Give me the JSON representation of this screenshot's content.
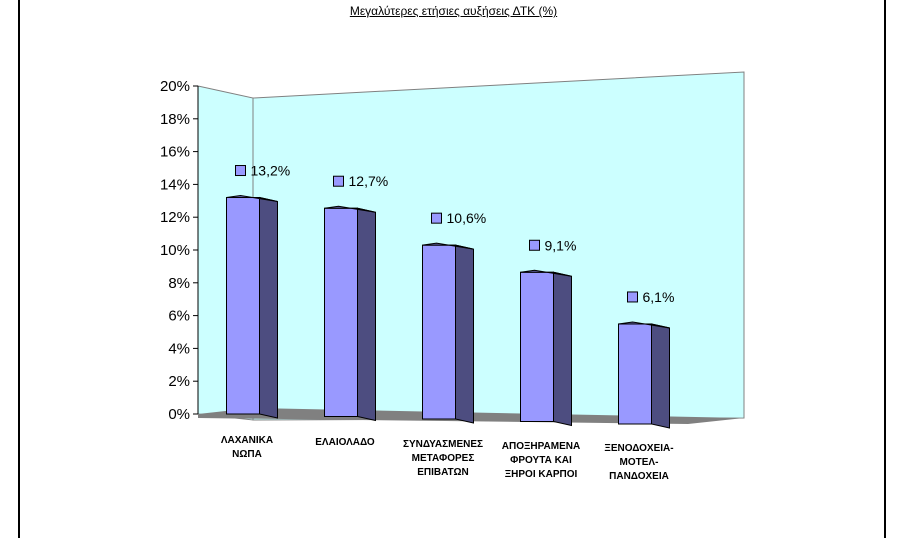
{
  "chart_data": {
    "type": "bar",
    "title": "Μεγαλύτερες ετήσιες αυξήσεις ΔΤΚ (%)",
    "categories": [
      [
        "ΛΑΧΑΝΙΚΑ",
        "ΝΩΠΑ"
      ],
      [
        "ΕΛΑΙΟΛΑΔΟ"
      ],
      [
        "ΣΥΝΔΥΑΣΜΕΝΕΣ",
        "ΜΕΤΑΦΟΡΕΣ",
        "ΕΠΙΒΑΤΩΝ"
      ],
      [
        "ΑΠΟΞΗΡΑΜΕΝΑ",
        "ΦΡΟΥΤΑ ΚΑΙ",
        "ΞΗΡΟΙ ΚΑΡΠΟΙ"
      ],
      [
        "ΞΕΝΟΔΟΧΕΙΑ-",
        "ΜΟΤΕΛ-",
        "ΠΑΝΔΟΧΕΙΑ"
      ]
    ],
    "values": [
      13.2,
      12.7,
      10.6,
      9.1,
      6.1
    ],
    "data_labels": [
      "13,2%",
      "12,7%",
      "10,6%",
      "9,1%",
      "6,1%"
    ],
    "yticks": [
      "0%",
      "2%",
      "4%",
      "6%",
      "8%",
      "10%",
      "12%",
      "14%",
      "16%",
      "18%",
      "20%"
    ],
    "ylim": [
      0,
      20
    ],
    "grid": false,
    "legend": "none",
    "colors": {
      "bar_front": "#9999ff",
      "bar_side": "#4d4d80",
      "bar_top": "#6666aa",
      "back_wall": "#ccffff",
      "floor": "#808080"
    }
  }
}
